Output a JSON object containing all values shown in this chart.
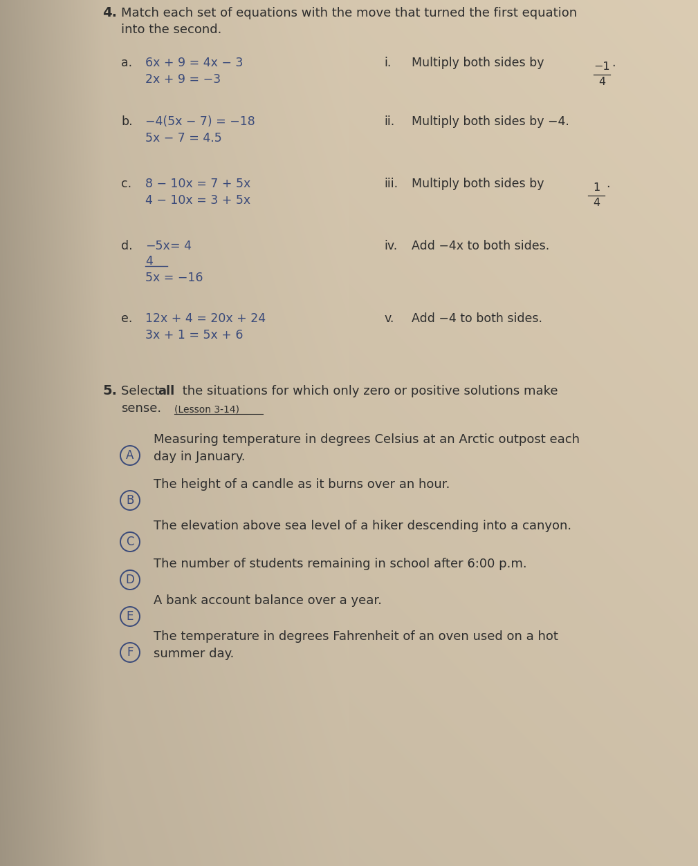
{
  "bg_light": "#e8e0d0",
  "bg_mid": "#cfc4b0",
  "bg_dark": "#b8a898",
  "text_dark": "#2d2d2d",
  "text_blue": "#3a4a7a",
  "circle_color": "#3a4a7a",
  "q4_number": "4.",
  "q4_line1": "Match each set of equations with the move that turned the first equation",
  "q4_line2": "into the second.",
  "parts_left": [
    {
      "label": "a.",
      "eq1": "6x + 9 = 4x − 3",
      "eq2": "2x + 9 = −3"
    },
    {
      "label": "b.",
      "eq1": "−4(5x − 7) = −18",
      "eq2": "5x − 7 = 4.5"
    },
    {
      "label": "c.",
      "eq1": "8 − 10x = 7 + 5x",
      "eq2": "4 − 10x = 3 + 5x"
    },
    {
      "label": "d.",
      "eq1_num": "−5x",
      "eq1_den": "4",
      "eq1_rest": "= 4",
      "eq2": "5x = −16"
    },
    {
      "label": "e.",
      "eq1": "12x + 4 = 20x + 24",
      "eq2": "3x + 1 = 5x + 6"
    }
  ],
  "parts_right": [
    {
      "roman": "i.",
      "text": "Multiply both sides by",
      "frac_num": "−1",
      "frac_den": "4"
    },
    {
      "roman": "ii.",
      "text": "Multiply both sides by −4."
    },
    {
      "roman": "iii.",
      "text": "Multiply both sides by",
      "frac_num": "1",
      "frac_den": "4"
    },
    {
      "roman": "iv.",
      "text": "Add −4x to both sides."
    },
    {
      "roman": "v.",
      "text": "Add −4 to both sides."
    }
  ],
  "q5_number": "5.",
  "q5_line1_pre": "Select ",
  "q5_line1_bold": "all",
  "q5_line1_post": " the situations for which only zero or positive solutions make",
  "q5_line2": "sense.",
  "q5_lesson": "(Lesson 3-14)",
  "q5_items": [
    {
      "letter": "A",
      "line1": "Measuring temperature in degrees Celsius at an Arctic outpost each",
      "line2": "day in January."
    },
    {
      "letter": "B",
      "line1": "The height of a candle as it burns over an hour.",
      "line2": ""
    },
    {
      "letter": "C",
      "line1": "The elevation above sea level of a hiker descending into a canyon.",
      "line2": ""
    },
    {
      "letter": "D",
      "line1": "The number of students remaining in school after 6:00 p.m.",
      "line2": ""
    },
    {
      "letter": "E",
      "line1": "A bank account balance over a year.",
      "line2": ""
    },
    {
      "letter": "F",
      "line1": "The temperature in degrees Fahrenheit of an oven used on a hot",
      "line2": "summer day."
    }
  ],
  "fs_main": 13,
  "fs_eq": 12.5,
  "fs_roman": 12.5,
  "fs_small": 10.5
}
